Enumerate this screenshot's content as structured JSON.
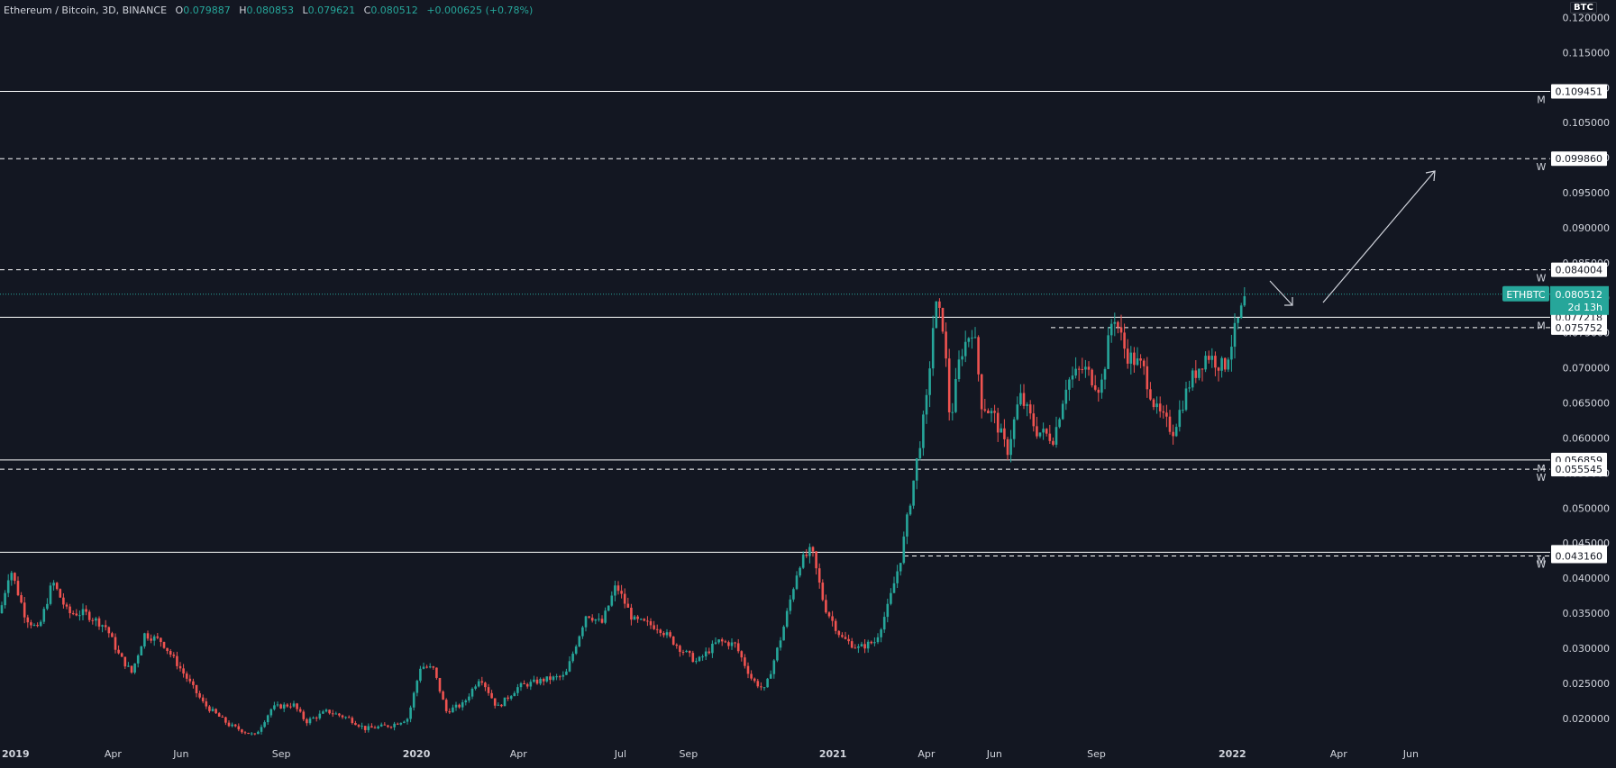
{
  "header": {
    "title": "Ethereum / Bitcoin, 3D, BINANCE",
    "open_label": "O",
    "open": "0.079887",
    "high_label": "H",
    "high": "0.080853",
    "low_label": "L",
    "low": "0.079621",
    "close_label": "C",
    "close": "0.080512",
    "change": "+0.000625 (+0.78%)"
  },
  "price_axis": {
    "currency": "BTC",
    "ticks": [
      "0.120000",
      "0.115000",
      "0.110000",
      "0.105000",
      "0.100000",
      "0.095000",
      "0.090000",
      "0.085000",
      "0.080000",
      "0.075000",
      "0.070000",
      "0.065000",
      "0.060000",
      "0.055000",
      "0.050000",
      "0.045000",
      "0.040000",
      "0.035000",
      "0.030000",
      "0.025000",
      "0.020000"
    ],
    "tick_values": [
      0.12,
      0.115,
      0.11,
      0.105,
      0.1,
      0.095,
      0.09,
      0.085,
      0.08,
      0.075,
      0.07,
      0.065,
      0.06,
      0.055,
      0.05,
      0.045,
      0.04,
      0.035,
      0.03,
      0.025,
      0.02
    ]
  },
  "time_axis": {
    "labels": [
      "2019",
      "Apr",
      "Jun",
      "Sep",
      "2020",
      "Apr",
      "Jul",
      "Sep",
      "2021",
      "Apr",
      "Jun",
      "Sep",
      "2022",
      "Apr",
      "Jun"
    ],
    "bold": [
      true,
      false,
      false,
      false,
      true,
      false,
      false,
      false,
      true,
      false,
      false,
      false,
      true,
      false,
      false
    ]
  },
  "levels": [
    {
      "value": 0.109451,
      "label": "0.109451",
      "tag": "M",
      "style": "solid"
    },
    {
      "value": 0.09986,
      "label": "0.099860",
      "tag": "W",
      "style": "dashed"
    },
    {
      "value": 0.084004,
      "label": "0.084004",
      "tag": "W",
      "style": "dashed"
    },
    {
      "value": 0.077218,
      "label": "0.077218",
      "tag": "M",
      "style": "solid"
    },
    {
      "value": 0.075752,
      "label": "0.075752",
      "tag": "",
      "style": "dashed"
    },
    {
      "value": 0.056859,
      "label": "0.056859",
      "tag": "M",
      "style": "solid"
    },
    {
      "value": 0.055545,
      "label": "0.055545",
      "tag": "W",
      "style": "dashed"
    },
    {
      "value": 0.043684,
      "label": "0.043684",
      "tag": "M",
      "style": "solid"
    },
    {
      "value": 0.04316,
      "label": "0.043160",
      "tag": "W",
      "style": "dashed"
    }
  ],
  "current_price": {
    "symbol": "ETHBTC",
    "value": "0.080512",
    "countdown": "2d 13h"
  },
  "colors": {
    "background": "#131722",
    "up": "#26a69a",
    "down": "#ef5350",
    "level": "#ffffff",
    "text": "#d1d4dc",
    "price_tag": "#26a69a"
  },
  "chart_data": {
    "type": "candlestick",
    "title": "Ethereum / Bitcoin, 3D, BINANCE",
    "ylabel": "BTC",
    "ylim": [
      0.0165,
      0.1225
    ],
    "x_labels": [
      "2019",
      "Apr",
      "Jun",
      "Sep",
      "2020",
      "Apr",
      "Jul",
      "Sep",
      "2021",
      "Apr",
      "Jun",
      "Sep",
      "2022",
      "Apr",
      "Jun"
    ],
    "price_path": [
      {
        "t": 0.0,
        "p": 0.035
      },
      {
        "t": 0.012,
        "p": 0.0415
      },
      {
        "t": 0.03,
        "p": 0.0345
      },
      {
        "t": 0.045,
        "p": 0.0325
      },
      {
        "t": 0.062,
        "p": 0.0395
      },
      {
        "t": 0.08,
        "p": 0.035
      },
      {
        "t": 0.1,
        "p": 0.035
      },
      {
        "t": 0.125,
        "p": 0.033
      },
      {
        "t": 0.14,
        "p": 0.029
      },
      {
        "t": 0.155,
        "p": 0.0265
      },
      {
        "t": 0.17,
        "p": 0.032
      },
      {
        "t": 0.19,
        "p": 0.031
      },
      {
        "t": 0.21,
        "p": 0.0275
      },
      {
        "t": 0.24,
        "p": 0.022
      },
      {
        "t": 0.27,
        "p": 0.019
      },
      {
        "t": 0.3,
        "p": 0.0175
      },
      {
        "t": 0.32,
        "p": 0.0215
      },
      {
        "t": 0.345,
        "p": 0.022
      },
      {
        "t": 0.36,
        "p": 0.0195
      },
      {
        "t": 0.385,
        "p": 0.021
      },
      {
        "t": 0.41,
        "p": 0.02
      },
      {
        "t": 0.43,
        "p": 0.0185
      },
      {
        "t": 0.46,
        "p": 0.019
      },
      {
        "t": 0.48,
        "p": 0.02
      },
      {
        "t": 0.495,
        "p": 0.0275
      },
      {
        "t": 0.51,
        "p": 0.027
      },
      {
        "t": 0.525,
        "p": 0.021
      },
      {
        "t": 0.545,
        "p": 0.022
      },
      {
        "t": 0.565,
        "p": 0.026
      },
      {
        "t": 0.585,
        "p": 0.0215
      },
      {
        "t": 0.61,
        "p": 0.0245
      },
      {
        "t": 0.64,
        "p": 0.0255
      },
      {
        "t": 0.665,
        "p": 0.026
      },
      {
        "t": 0.69,
        "p": 0.035
      },
      {
        "t": 0.708,
        "p": 0.0335
      },
      {
        "t": 0.725,
        "p": 0.039
      },
      {
        "t": 0.745,
        "p": 0.034
      },
      {
        "t": 0.775,
        "p": 0.033
      },
      {
        "t": 0.8,
        "p": 0.03
      },
      {
        "t": 0.82,
        "p": 0.028
      },
      {
        "t": 0.845,
        "p": 0.031
      },
      {
        "t": 0.865,
        "p": 0.0305
      },
      {
        "t": 0.885,
        "p": 0.0255
      },
      {
        "t": 0.9,
        "p": 0.024
      },
      {
        "t": 0.92,
        "p": 0.032
      },
      {
        "t": 0.94,
        "p": 0.042
      },
      {
        "t": 0.955,
        "p": 0.044
      },
      {
        "t": 0.97,
        "p": 0.036
      },
      {
        "t": 0.99,
        "p": 0.0315
      },
      {
        "t": 1.01,
        "p": 0.03
      },
      {
        "t": 1.03,
        "p": 0.031
      },
      {
        "t": 1.045,
        "p": 0.036
      },
      {
        "t": 1.06,
        "p": 0.043
      },
      {
        "t": 1.075,
        "p": 0.054
      },
      {
        "t": 1.09,
        "p": 0.065
      },
      {
        "t": 1.1,
        "p": 0.079
      },
      {
        "t": 1.11,
        "p": 0.076
      },
      {
        "t": 1.118,
        "p": 0.062
      },
      {
        "t": 1.13,
        "p": 0.072
      },
      {
        "t": 1.145,
        "p": 0.076
      },
      {
        "t": 1.155,
        "p": 0.065
      },
      {
        "t": 1.17,
        "p": 0.063
      },
      {
        "t": 1.185,
        "p": 0.058
      },
      {
        "t": 1.2,
        "p": 0.066
      },
      {
        "t": 1.22,
        "p": 0.061
      },
      {
        "t": 1.24,
        "p": 0.06
      },
      {
        "t": 1.255,
        "p": 0.068
      },
      {
        "t": 1.275,
        "p": 0.07
      },
      {
        "t": 1.295,
        "p": 0.067
      },
      {
        "t": 1.31,
        "p": 0.078
      },
      {
        "t": 1.325,
        "p": 0.072
      },
      {
        "t": 1.345,
        "p": 0.07
      },
      {
        "t": 1.36,
        "p": 0.064
      },
      {
        "t": 1.38,
        "p": 0.061
      },
      {
        "t": 1.4,
        "p": 0.068
      },
      {
        "t": 1.42,
        "p": 0.072
      },
      {
        "t": 1.44,
        "p": 0.07
      },
      {
        "t": 1.455,
        "p": 0.076
      },
      {
        "t": 1.467,
        "p": 0.0805
      }
    ]
  }
}
